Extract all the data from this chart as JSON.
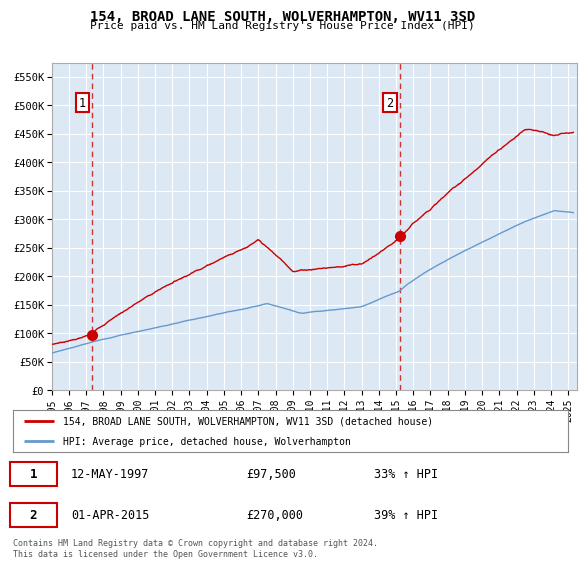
{
  "title": "154, BROAD LANE SOUTH, WOLVERHAMPTON, WV11 3SD",
  "subtitle": "Price paid vs. HM Land Registry's House Price Index (HPI)",
  "background_color": "#dce9f5",
  "plot_bg_color": "#dce9f5",
  "ylim": [
    0,
    575000
  ],
  "xlim_start": 1995.0,
  "xlim_end": 2025.5,
  "yticks": [
    0,
    50000,
    100000,
    150000,
    200000,
    250000,
    300000,
    350000,
    400000,
    450000,
    500000,
    550000
  ],
  "ytick_labels": [
    "£0",
    "£50K",
    "£100K",
    "£150K",
    "£200K",
    "£250K",
    "£300K",
    "£350K",
    "£400K",
    "£450K",
    "£500K",
    "£550K"
  ],
  "xtick_years": [
    1995,
    1996,
    1997,
    1998,
    1999,
    2000,
    2001,
    2002,
    2003,
    2004,
    2005,
    2006,
    2007,
    2008,
    2009,
    2010,
    2011,
    2012,
    2013,
    2014,
    2015,
    2016,
    2017,
    2018,
    2019,
    2020,
    2021,
    2022,
    2023,
    2024,
    2025
  ],
  "sale1_x": 1997.36,
  "sale1_y": 97500,
  "sale2_x": 2015.25,
  "sale2_y": 270000,
  "sale1_date": "12-MAY-1997",
  "sale1_price": "£97,500",
  "sale1_hpi": "33% ↑ HPI",
  "sale2_date": "01-APR-2015",
  "sale2_price": "£270,000",
  "sale2_hpi": "39% ↑ HPI",
  "red_line_color": "#cc0000",
  "blue_line_color": "#6699cc",
  "dashed_line_color": "#cc3333",
  "legend_line1": "154, BROAD LANE SOUTH, WOLVERHAMPTON, WV11 3SD (detached house)",
  "legend_line2": "HPI: Average price, detached house, Wolverhampton",
  "footer_text": "Contains HM Land Registry data © Crown copyright and database right 2024.\nThis data is licensed under the Open Government Licence v3.0.",
  "grid_color": "#ffffff",
  "label_box_color": "#cc0000"
}
